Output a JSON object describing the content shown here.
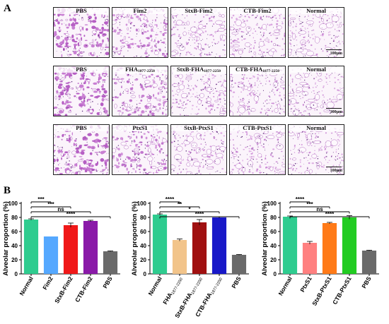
{
  "panel_a": {
    "letter": "A",
    "scale_label": "100μm",
    "rows": [
      {
        "tiles": [
          {
            "label": "PBS",
            "sub": "",
            "condition": "pbs"
          },
          {
            "label": "Fim2",
            "sub": "",
            "condition": "treated"
          },
          {
            "label": "StxB-Fim2",
            "sub": "",
            "condition": "vaccine"
          },
          {
            "label": "CTB-Fim2",
            "sub": "",
            "condition": "vaccine"
          },
          {
            "label": "Normal",
            "sub": "",
            "condition": "normal"
          }
        ]
      },
      {
        "tiles": [
          {
            "label": "PBS",
            "sub": "",
            "condition": "pbs"
          },
          {
            "label": "FHA",
            "sub": "1877-2250",
            "condition": "treated"
          },
          {
            "label": "StxB-FHA",
            "sub": "1877-2250",
            "condition": "vaccine"
          },
          {
            "label": "CTB-FHA",
            "sub": "1877-2250",
            "condition": "vaccine"
          },
          {
            "label": "Normal",
            "sub": "",
            "condition": "normal"
          }
        ]
      },
      {
        "tiles": [
          {
            "label": "PBS",
            "sub": "",
            "condition": "pbs"
          },
          {
            "label": "PtxS1",
            "sub": "",
            "condition": "treated"
          },
          {
            "label": "StxB-PtxS1",
            "sub": "",
            "condition": "vaccine"
          },
          {
            "label": "CTB-PtxS1",
            "sub": "",
            "condition": "vaccine"
          },
          {
            "label": "Normal",
            "sub": "",
            "condition": "normal"
          }
        ]
      }
    ]
  },
  "panel_b": {
    "letter": "B"
  },
  "chart_data": [
    {
      "type": "bar",
      "ylabel": "Alveolar proportion (%)",
      "ylim": [
        0,
        100
      ],
      "yticks": [
        0,
        20,
        40,
        60,
        80,
        100
      ],
      "categories": [
        "Normal",
        "Fim2",
        "StxB-Fim2",
        "CTB-Fim2",
        "PBS"
      ],
      "category_subs": [
        "",
        "",
        "",
        "",
        ""
      ],
      "values": [
        77,
        53,
        69,
        75,
        32
      ],
      "errors": [
        1.0,
        0,
        3.0,
        1.0,
        0.5
      ],
      "colors": [
        "#2ecc8f",
        "#55a8ff",
        "#f01818",
        "#8a1aa8",
        "#6a6a6a"
      ],
      "significance": [
        {
          "label": "***",
          "to": 1
        },
        {
          "label": "***",
          "to": 2
        },
        {
          "label": "ns",
          "to": 3
        },
        {
          "label": "****",
          "to": 4
        }
      ]
    },
    {
      "type": "bar",
      "ylabel": "Alveolar proportion (%)",
      "ylim": [
        0,
        100
      ],
      "yticks": [
        0,
        20,
        40,
        60,
        80,
        100
      ],
      "categories": [
        "Normal",
        "FHA",
        "StxB-FHA",
        "CTB-FHA",
        "PBS"
      ],
      "category_subs": [
        "",
        "1877-2250",
        "1877-2250",
        "1877-2250",
        ""
      ],
      "values": [
        84,
        48,
        73,
        80,
        27
      ],
      "errors": [
        1.0,
        1.5,
        4.0,
        1.0,
        0.5
      ],
      "colors": [
        "#2ecc8f",
        "#f2c48a",
        "#a01010",
        "#1818c8",
        "#6a6a6a"
      ],
      "significance": [
        {
          "label": "****",
          "to": 1
        },
        {
          "label": "**",
          "to": 2
        },
        {
          "label": "*",
          "to": 3
        },
        {
          "label": "****",
          "to": 4
        }
      ]
    },
    {
      "type": "bar",
      "ylabel": "Alveolar proportion (%)",
      "ylim": [
        0,
        100
      ],
      "yticks": [
        0,
        20,
        40,
        60,
        80,
        100
      ],
      "categories": [
        "Normal",
        "PtxS1",
        "StxB-PtxS1",
        "CTB-PtxS1",
        "PBS"
      ],
      "category_subs": [
        "",
        "",
        "",
        "",
        ""
      ],
      "values": [
        81,
        44,
        72,
        80,
        33
      ],
      "errors": [
        1.0,
        2.0,
        1.0,
        2.5,
        0.5
      ],
      "colors": [
        "#2ecc8f",
        "#ff8080",
        "#ff7a18",
        "#22cc22",
        "#6a6a6a"
      ],
      "significance": [
        {
          "label": "****",
          "to": 1
        },
        {
          "label": "***",
          "to": 2
        },
        {
          "label": "ns",
          "to": 3
        },
        {
          "label": "****",
          "to": 4
        }
      ]
    }
  ]
}
